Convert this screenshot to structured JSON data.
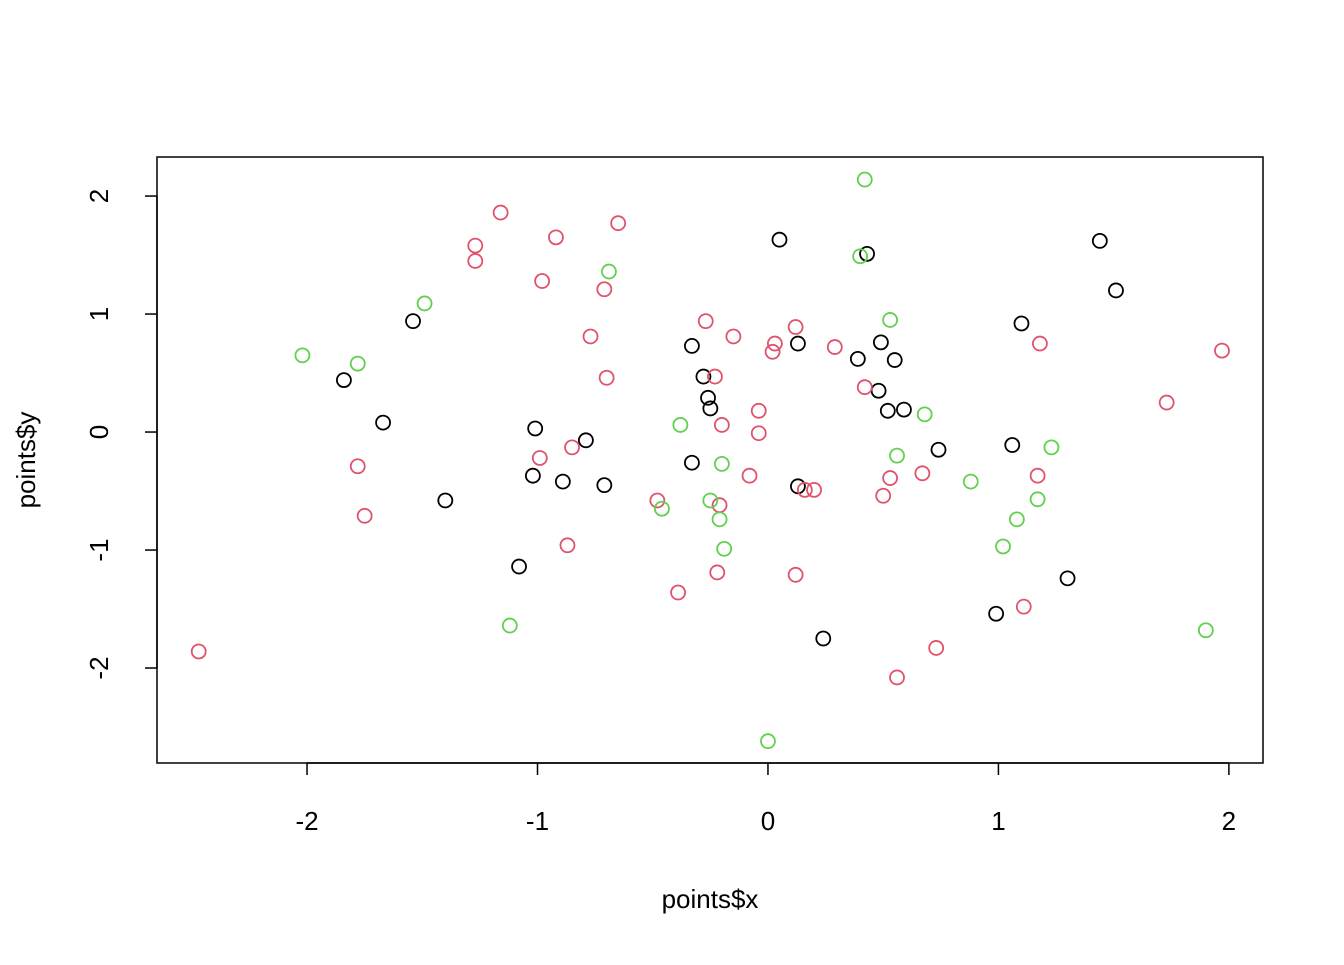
{
  "chart_data": {
    "type": "scatter",
    "xlabel": "points$x",
    "ylabel": "points$y",
    "xlim": [
      -2.651,
      2.148
    ],
    "ylim": [
      -2.805,
      2.331
    ],
    "xticks": [
      -2,
      -1,
      0,
      1,
      2
    ],
    "yticks": [
      -2,
      -1,
      0,
      1,
      2
    ],
    "series": [
      {
        "color": "#000000",
        "x": [
          0.05,
          0.43,
          1.44,
          1.51,
          -1.54,
          1.1,
          -0.33,
          0.13,
          0.49,
          0.39,
          0.55,
          -1.84,
          -0.28,
          -0.26,
          -0.25,
          0.48,
          0.52,
          0.59,
          -1.67,
          -1.01,
          -0.79,
          0.74,
          1.06,
          -0.33,
          -1.02,
          -0.89,
          -0.71,
          0.13,
          -1.4,
          -1.08,
          1.3,
          0.99,
          0.24
        ],
        "values": [
          1.63,
          1.51,
          1.62,
          1.2,
          0.94,
          0.92,
          0.73,
          0.75,
          0.76,
          0.62,
          0.61,
          0.44,
          0.47,
          0.29,
          0.2,
          0.35,
          0.18,
          0.19,
          0.08,
          0.03,
          -0.07,
          -0.15,
          -0.11,
          -0.26,
          -0.37,
          -0.42,
          -0.45,
          -0.46,
          -0.58,
          -1.14,
          -1.24,
          -1.54,
          -1.75
        ]
      },
      {
        "color": "#DF536B",
        "x": [
          -1.16,
          -0.65,
          -1.27,
          -0.92,
          -1.27,
          -0.98,
          -0.71,
          -0.27,
          0.12,
          -0.77,
          -0.15,
          0.03,
          0.02,
          0.29,
          1.18,
          1.97,
          -0.7,
          -0.23,
          0.42,
          1.73,
          -0.04,
          -0.2,
          -0.04,
          -0.85,
          -0.99,
          -1.78,
          -0.08,
          0.53,
          0.67,
          1.17,
          0.16,
          0.2,
          0.5,
          -0.48,
          -0.21,
          -1.75,
          -0.87,
          -0.22,
          0.12,
          -0.39,
          1.11,
          0.73,
          -2.47,
          0.56
        ],
        "values": [
          1.86,
          1.77,
          1.58,
          1.65,
          1.45,
          1.28,
          1.21,
          0.94,
          0.89,
          0.81,
          0.81,
          0.75,
          0.68,
          0.72,
          0.75,
          0.69,
          0.46,
          0.47,
          0.38,
          0.25,
          0.18,
          0.06,
          -0.01,
          -0.13,
          -0.22,
          -0.29,
          -0.37,
          -0.39,
          -0.35,
          -0.37,
          -0.49,
          -0.49,
          -0.54,
          -0.58,
          -0.62,
          -0.71,
          -0.96,
          -1.19,
          -1.21,
          -1.36,
          -1.48,
          -1.83,
          -1.86,
          -2.08
        ]
      },
      {
        "color": "#61D04F",
        "x": [
          0.42,
          0.4,
          -0.69,
          -1.49,
          0.53,
          -2.02,
          -1.78,
          0.68,
          -0.38,
          1.23,
          0.56,
          -0.2,
          0.88,
          -0.25,
          1.17,
          -0.46,
          -0.21,
          1.08,
          -0.19,
          1.02,
          -1.12,
          1.9,
          0.0
        ],
        "values": [
          2.14,
          1.49,
          1.36,
          1.09,
          0.95,
          0.65,
          0.58,
          0.15,
          0.06,
          -0.13,
          -0.2,
          -0.27,
          -0.42,
          -0.58,
          -0.57,
          -0.65,
          -0.74,
          -0.74,
          -0.99,
          -0.97,
          -1.64,
          -1.68,
          -2.62
        ]
      }
    ]
  }
}
